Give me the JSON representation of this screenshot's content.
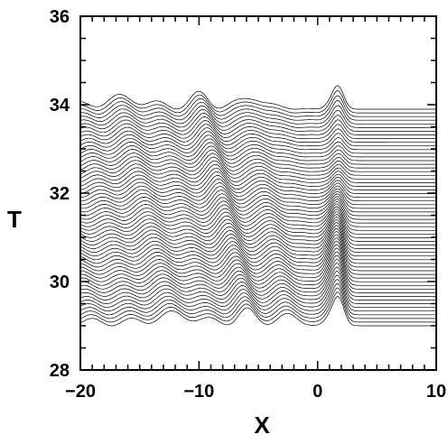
{
  "chart_data": {
    "type": "line",
    "title": "",
    "xlabel": "X",
    "ylabel": "T",
    "xlim": [
      -20,
      10
    ],
    "ylim": [
      28,
      36
    ],
    "x_ticks": [
      -20,
      -10,
      0,
      10
    ],
    "x_tick_labels": [
      "−20",
      "−10",
      "0",
      "10"
    ],
    "y_ticks": [
      28,
      30,
      32,
      34,
      36
    ],
    "y_tick_labels": [
      "28",
      "30",
      "32",
      "34",
      "36"
    ],
    "x_minor_step": 1,
    "y_minor_step": 0.5,
    "grid": false,
    "legend": "none",
    "traces": {
      "count": 60,
      "t_start": 29.0,
      "t_step": 0.083,
      "baseline_x_start": -20,
      "baseline_x_end": 10,
      "stroke_color": "#000000",
      "fill_color": "#ffffff"
    }
  }
}
